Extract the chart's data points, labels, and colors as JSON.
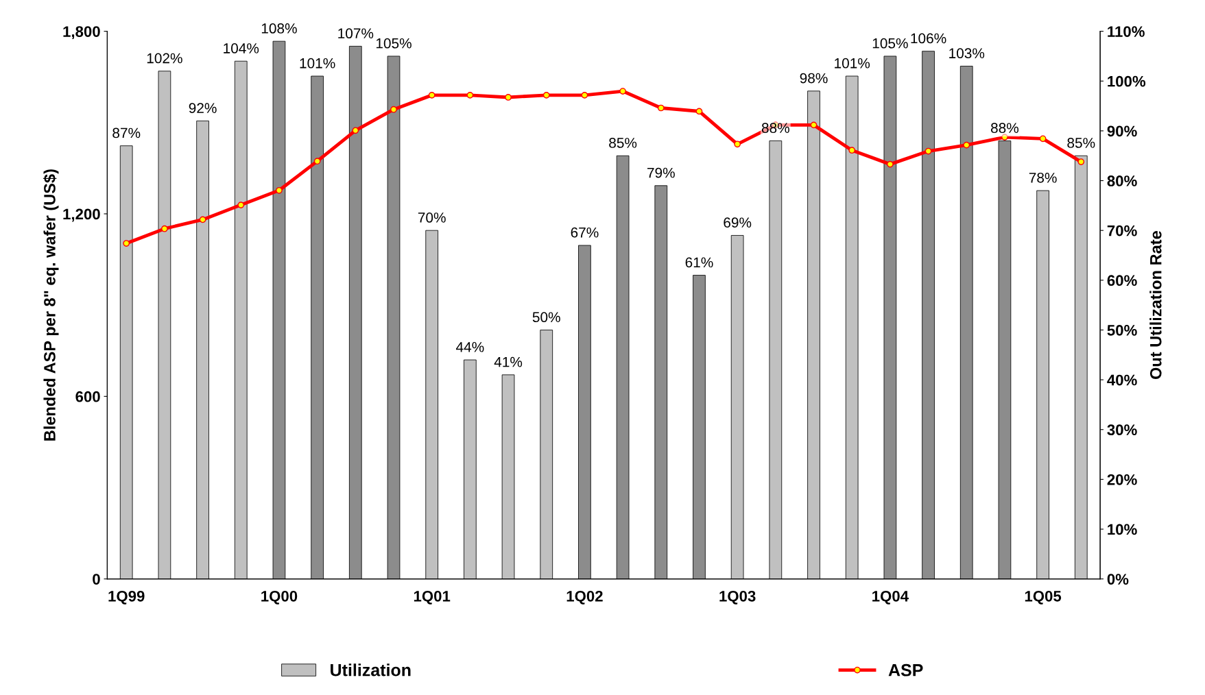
{
  "chart_data": {
    "type": "bar",
    "categories": [
      "1Q99",
      null,
      null,
      null,
      "1Q00",
      null,
      null,
      null,
      "1Q01",
      null,
      null,
      null,
      "1Q02",
      null,
      null,
      null,
      "1Q03",
      null,
      null,
      null,
      "1Q04",
      null,
      null,
      null,
      "1Q05",
      null
    ],
    "ylabel": "Blended ASP per 8\" eq. wafer (US$)",
    "y2label": "Out Utilization Rate",
    "ylim": [
      0,
      1800
    ],
    "yticks": [
      0,
      {
        "value": 600,
        "label": "600"
      },
      {
        "value": 1200,
        "label": "1,200"
      },
      {
        "value": 1800,
        "label": "1,800"
      }
    ],
    "y2lim": [
      0,
      110
    ],
    "y2ticks": [
      {
        "value": 0,
        "label": "0%"
      },
      {
        "value": 10,
        "label": "10%"
      },
      {
        "value": 20,
        "label": "20%"
      },
      {
        "value": 30,
        "label": "30%"
      },
      {
        "value": 40,
        "label": "40%"
      },
      {
        "value": 50,
        "label": "50%"
      },
      {
        "value": 60,
        "label": "60%"
      },
      {
        "value": 70,
        "label": "70%"
      },
      {
        "value": 80,
        "label": "80%"
      },
      {
        "value": 90,
        "label": "90%"
      },
      {
        "value": 100,
        "label": "100%"
      },
      {
        "value": 110,
        "label": "110%"
      }
    ],
    "grid": false,
    "legend": "bottom",
    "marker": "circle",
    "line_style": "solid",
    "series": [
      {
        "name": "Utilization",
        "axis": "y2",
        "colors": [
          "#c0c0c0",
          "#c0c0c0",
          "#c0c0c0",
          "#c0c0c0",
          "#8c8c8c",
          "#8c8c8c",
          "#8c8c8c",
          "#8c8c8c",
          "#c0c0c0",
          "#c0c0c0",
          "#c0c0c0",
          "#c0c0c0",
          "#8c8c8c",
          "#8c8c8c",
          "#8c8c8c",
          "#8c8c8c",
          "#c0c0c0",
          "#c0c0c0",
          "#c0c0c0",
          "#c0c0c0",
          "#8c8c8c",
          "#8c8c8c",
          "#8c8c8c",
          "#8c8c8c",
          "#c0c0c0",
          "#c0c0c0"
        ],
        "values": [
          87,
          102,
          92,
          104,
          108,
          101,
          107,
          105,
          70,
          44,
          41,
          50,
          67,
          85,
          79,
          61,
          69,
          88,
          98,
          101,
          105,
          106,
          103,
          88,
          78,
          85
        ],
        "value_labels": [
          "87%",
          "102%",
          "92%",
          "104%",
          "108%",
          "101%",
          "107%",
          "105%",
          "70%",
          "44%",
          "41%",
          "50%",
          "67%",
          "85%",
          "79%",
          "61%",
          "69%",
          "88%",
          "98%",
          "101%",
          "105%",
          "106%",
          "103%",
          "88%",
          "78%",
          "85%"
        ]
      },
      {
        "name": "ASP",
        "type": "line",
        "axis": "y",
        "color": "#ff0000",
        "values": [
          1103,
          1151,
          1181,
          1229,
          1277,
          1373,
          1474,
          1543,
          1590,
          1590,
          1583,
          1590,
          1590,
          1603,
          1548,
          1537,
          1429,
          1492,
          1492,
          1409,
          1363,
          1406,
          1426,
          1452,
          1447,
          1371
        ]
      }
    ]
  }
}
